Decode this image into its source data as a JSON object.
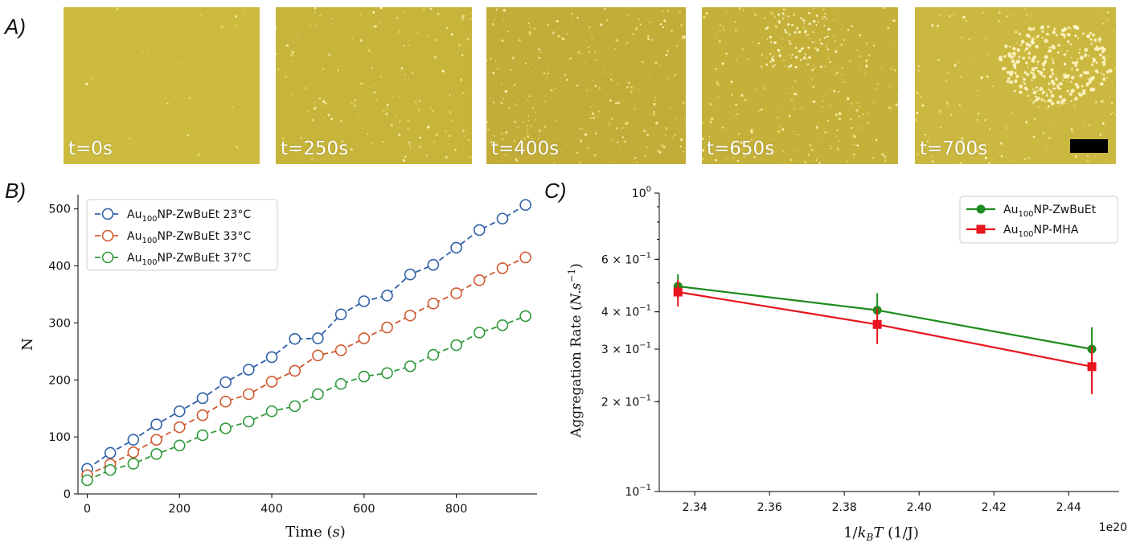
{
  "panels": {
    "a": "A)",
    "b": "B)",
    "c": "C)"
  },
  "micrographs": [
    {
      "label": "t=0s"
    },
    {
      "label": "t=250s"
    },
    {
      "label": "t=400s"
    },
    {
      "label": "t=650s"
    },
    {
      "label": "t=700s"
    }
  ],
  "chart_data": [
    {
      "type": "line",
      "title": "",
      "xlabel": "Time (s)",
      "ylabel": "N",
      "xlim": [
        -20,
        975
      ],
      "ylim": [
        0,
        525
      ],
      "xticks": [
        0,
        200,
        400,
        600,
        800
      ],
      "yticks": [
        0,
        100,
        200,
        300,
        400,
        500
      ],
      "legend_position": "top-left",
      "grid": false,
      "x": [
        0,
        50,
        100,
        150,
        200,
        250,
        300,
        350,
        400,
        450,
        500,
        550,
        600,
        650,
        700,
        750,
        800,
        850,
        900,
        950
      ],
      "series": [
        {
          "name": "Au100NP-ZwBuEt 23°C",
          "legend_label": {
            "prefix": "Au",
            "sub": "100",
            "suffix": "NP-ZwBuEt 23°C"
          },
          "color": "#3060a8",
          "values": [
            44,
            72,
            95,
            122,
            145,
            168,
            196,
            218,
            240,
            272,
            273,
            315,
            338,
            348,
            385,
            402,
            432,
            463,
            483,
            507
          ]
        },
        {
          "name": "Au100NP-ZwBuEt 33°C",
          "legend_label": {
            "prefix": "Au",
            "sub": "100",
            "suffix": "NP-ZwBuEt 33°C"
          },
          "color": "#d05a30",
          "values": [
            33,
            52,
            73,
            95,
            117,
            138,
            162,
            175,
            197,
            216,
            243,
            252,
            273,
            292,
            313,
            334,
            352,
            375,
            396,
            415
          ]
        },
        {
          "name": "Au100NP-ZwBuEt 37°C",
          "legend_label": {
            "prefix": "Au",
            "sub": "100",
            "suffix": "NP-ZwBuEt 37°C"
          },
          "color": "#2f9a3a",
          "values": [
            24,
            42,
            53,
            70,
            85,
            103,
            115,
            127,
            145,
            154,
            175,
            193,
            206,
            212,
            224,
            244,
            261,
            283,
            296,
            312
          ]
        }
      ]
    },
    {
      "type": "line",
      "title": "",
      "xlabel": "1/k_BT (1/J)",
      "xlabel_parts": {
        "a": "1/",
        "k": "k",
        "sub": "B",
        "t": "T",
        "unit": " (1/J)"
      },
      "ylabel": "Aggregation Rate (N.s⁻¹)",
      "ylabel_parts": {
        "main": "Aggregation Rate (",
        "ns": "N.s",
        "sup": "−1",
        "close": ")"
      },
      "x_offset_label": "1e20",
      "yscale": "log",
      "xlim": [
        2.3305,
        2.4535
      ],
      "ylim": [
        0.1,
        1.0
      ],
      "xticks": [
        "2.34",
        "2.36",
        "2.38",
        "2.40",
        "2.42",
        "2.44"
      ],
      "xtick_values": [
        2.34,
        2.36,
        2.38,
        2.4,
        2.42,
        2.44
      ],
      "ytick_labels": [
        {
          "v": 1.0,
          "base": "10",
          "exp": "0"
        },
        {
          "v": 0.6,
          "base": "6 × 10",
          "exp": "−1"
        },
        {
          "v": 0.4,
          "base": "4 × 10",
          "exp": "−1"
        },
        {
          "v": 0.3,
          "base": "3 × 10",
          "exp": "−1"
        },
        {
          "v": 0.2,
          "base": "2 × 10",
          "exp": "−1"
        },
        {
          "v": 0.1,
          "base": "10",
          "exp": "−1"
        }
      ],
      "legend_position": "top-right",
      "grid": false,
      "series": [
        {
          "name": "Au100NP-ZwBuEt",
          "legend_label": {
            "prefix": "Au",
            "sub": "100",
            "suffix": "NP-ZwBuEt"
          },
          "color": "#1e8c1e",
          "marker": "circle",
          "x": [
            2.3355,
            2.3888,
            2.4462
          ],
          "values": [
            0.487,
            0.405,
            0.3
          ],
          "err_low": [
            0.442,
            0.36,
            0.247
          ],
          "err_high": [
            0.535,
            0.462,
            0.355
          ]
        },
        {
          "name": "Au100NP-MHA",
          "legend_label": {
            "prefix": "Au",
            "sub": "100",
            "suffix": "NP-MHA"
          },
          "color": "#e8141e",
          "marker": "square",
          "x": [
            2.3355,
            2.3888,
            2.4462
          ],
          "values": [
            0.466,
            0.363,
            0.262
          ],
          "err_low": [
            0.417,
            0.312,
            0.212
          ],
          "err_high": [
            0.512,
            0.41,
            0.306
          ]
        }
      ]
    }
  ]
}
